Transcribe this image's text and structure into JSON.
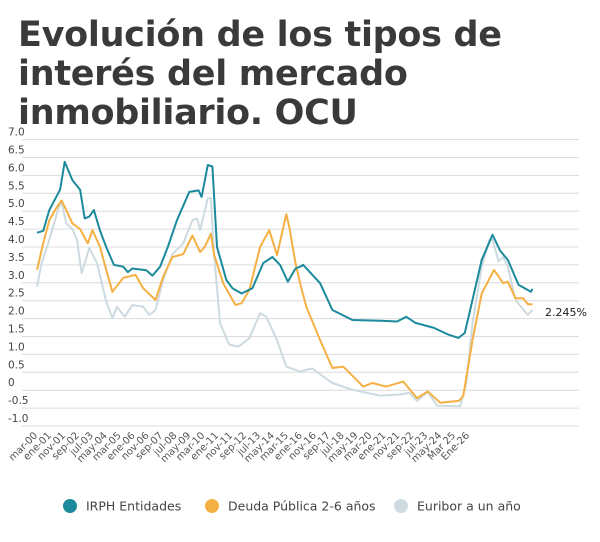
{
  "chart_data": {
    "type": "line",
    "title": "Evolución de los tipos de interés del mercado inmobiliario. OCU",
    "xlabel": "",
    "ylabel": "",
    "ylim": [
      -1.0,
      7.0
    ],
    "yticks": [
      "7.0",
      "6.5",
      "6.0",
      "5.5",
      "5.0",
      "4.5",
      "4.0",
      "3.5",
      "3.0",
      "2.5",
      "2.0",
      "1.5",
      "1.0",
      "0.5",
      "0",
      "-0.5",
      "-1.0"
    ],
    "xlim": [
      "1999-03",
      "2026-02"
    ],
    "xtick_labels": [
      "mar-00",
      "ene-01",
      "nov-01",
      "sep-02",
      "jul-03",
      "may-04",
      "mar-05",
      "ene-06",
      "nov-06",
      "sep-07",
      "jul-08",
      "may-09",
      "mar-10",
      "ene-11",
      "nov-11",
      "sep-12",
      "jul-13",
      "may-14",
      "mar-15",
      "ene-16",
      "nov-16",
      "sep-17",
      "jul-18",
      "may-19",
      "mar-20",
      "ene-21",
      "nov-21",
      "sep-22",
      "jul-23",
      "may-24",
      "Mar 25",
      "Ene-26"
    ],
    "grid": true,
    "legend_position": "bottom",
    "annotation": "2.245%",
    "series": [
      {
        "name": "IRPH Entidades",
        "color": "#1b8a9c",
        "points": [
          [
            "1999-03",
            4.4
          ],
          [
            "1999-07",
            4.45
          ],
          [
            "1999-11",
            5.03
          ],
          [
            "2000-06",
            5.6
          ],
          [
            "2000-09",
            6.38
          ],
          [
            "2001-02",
            5.87
          ],
          [
            "2001-07",
            5.6
          ],
          [
            "2001-10",
            4.8
          ],
          [
            "2002-01",
            4.85
          ],
          [
            "2002-04",
            5.03
          ],
          [
            "2002-08",
            4.45
          ],
          [
            "2002-12",
            4.0
          ],
          [
            "2003-05",
            3.5
          ],
          [
            "2003-11",
            3.45
          ],
          [
            "2004-02",
            3.3
          ],
          [
            "2004-05",
            3.4
          ],
          [
            "2005-02",
            3.35
          ],
          [
            "2005-06",
            3.2
          ],
          [
            "2005-11",
            3.45
          ],
          [
            "2006-04",
            4.0
          ],
          [
            "2006-10",
            4.75
          ],
          [
            "2007-06",
            5.54
          ],
          [
            "2007-12",
            5.58
          ],
          [
            "2008-02",
            5.4
          ],
          [
            "2008-06",
            6.29
          ],
          [
            "2008-09",
            6.25
          ],
          [
            "2008-12",
            4.0
          ],
          [
            "2009-06",
            3.08
          ],
          [
            "2009-10",
            2.85
          ],
          [
            "2010-04",
            2.7
          ],
          [
            "2010-11",
            2.85
          ],
          [
            "2011-06",
            3.55
          ],
          [
            "2011-12",
            3.72
          ],
          [
            "2012-05",
            3.5
          ],
          [
            "2012-10",
            3.03
          ],
          [
            "2013-03",
            3.4
          ],
          [
            "2013-06",
            3.45
          ],
          [
            "2013-08",
            3.5
          ],
          [
            "2014-07",
            2.99
          ],
          [
            "2015-03",
            2.24
          ],
          [
            "2016-04",
            1.96
          ],
          [
            "2017-10",
            1.94
          ],
          [
            "2018-09",
            1.92
          ],
          [
            "2019-03",
            2.05
          ],
          [
            "2019-09",
            1.88
          ],
          [
            "2020-09",
            1.74
          ],
          [
            "2021-06",
            1.56
          ],
          [
            "2022-01",
            1.46
          ],
          [
            "2022-05",
            1.6
          ],
          [
            "2022-09",
            2.33
          ],
          [
            "2023-04",
            3.64
          ],
          [
            "2023-11",
            4.34
          ],
          [
            "2024-04",
            3.9
          ],
          [
            "2024-09",
            3.64
          ],
          [
            "2025-04",
            2.94
          ],
          [
            "2025-12",
            2.75
          ],
          [
            "2026-01",
            2.83
          ]
        ]
      },
      {
        "name": "Deuda Pública 2-6 años",
        "color": "#f5b043",
        "points": [
          [
            "1999-03",
            3.36
          ],
          [
            "1999-07",
            4.1
          ],
          [
            "1999-11",
            4.75
          ],
          [
            "2000-04",
            5.12
          ],
          [
            "2000-07",
            5.3
          ],
          [
            "2000-10",
            5.03
          ],
          [
            "2001-02",
            4.66
          ],
          [
            "2001-07",
            4.5
          ],
          [
            "2001-12",
            4.1
          ],
          [
            "2002-03",
            4.47
          ],
          [
            "2002-08",
            4.0
          ],
          [
            "2002-12",
            3.36
          ],
          [
            "2003-04",
            2.75
          ],
          [
            "2003-11",
            3.14
          ],
          [
            "2004-07",
            3.22
          ],
          [
            "2004-12",
            2.85
          ],
          [
            "2005-08",
            2.52
          ],
          [
            "2006-01",
            3.17
          ],
          [
            "2006-07",
            3.72
          ],
          [
            "2007-02",
            3.8
          ],
          [
            "2007-08",
            4.32
          ],
          [
            "2008-01",
            3.86
          ],
          [
            "2008-04",
            4.0
          ],
          [
            "2008-08",
            4.37
          ],
          [
            "2008-10",
            3.8
          ],
          [
            "2009-04",
            2.99
          ],
          [
            "2009-12",
            2.38
          ],
          [
            "2010-04",
            2.43
          ],
          [
            "2010-09",
            2.8
          ],
          [
            "2011-04",
            4.0
          ],
          [
            "2011-10",
            4.47
          ],
          [
            "2012-03",
            3.77
          ],
          [
            "2012-09",
            4.92
          ],
          [
            "2012-11",
            4.56
          ],
          [
            "2013-03",
            3.55
          ],
          [
            "2013-06",
            2.99
          ],
          [
            "2013-10",
            2.33
          ],
          [
            "2014-07",
            1.4
          ],
          [
            "2015-03",
            0.62
          ],
          [
            "2015-10",
            0.66
          ],
          [
            "2016-11",
            0.1
          ],
          [
            "2017-05",
            0.2
          ],
          [
            "2018-02",
            0.1
          ],
          [
            "2019-01",
            0.24
          ],
          [
            "2019-10",
            -0.22
          ],
          [
            "2020-05",
            -0.03
          ],
          [
            "2021-01",
            -0.35
          ],
          [
            "2022-01",
            -0.3
          ],
          [
            "2022-04",
            -0.17
          ],
          [
            "2022-10",
            1.4
          ],
          [
            "2023-04",
            2.7
          ],
          [
            "2023-12",
            3.36
          ],
          [
            "2024-06",
            2.99
          ],
          [
            "2024-09",
            3.03
          ],
          [
            "2025-02",
            2.57
          ],
          [
            "2025-07",
            2.57
          ],
          [
            "2025-10",
            2.4
          ],
          [
            "2026-01",
            2.4
          ]
        ]
      },
      {
        "name": "Euribor a un año",
        "color": "#cddbe1",
        "points": [
          [
            "1999-03",
            2.89
          ],
          [
            "1999-06",
            3.55
          ],
          [
            "1999-11",
            4.2
          ],
          [
            "2000-05",
            5.08
          ],
          [
            "2000-07",
            5.26
          ],
          [
            "2000-10",
            4.66
          ],
          [
            "2001-02",
            4.5
          ],
          [
            "2001-05",
            4.2
          ],
          [
            "2001-08",
            3.27
          ],
          [
            "2002-01",
            3.97
          ],
          [
            "2002-06",
            3.55
          ],
          [
            "2002-12",
            2.48
          ],
          [
            "2003-04",
            2.01
          ],
          [
            "2003-07",
            2.33
          ],
          [
            "2003-12",
            2.05
          ],
          [
            "2004-05",
            2.38
          ],
          [
            "2004-12",
            2.33
          ],
          [
            "2005-04",
            2.1
          ],
          [
            "2005-08",
            2.24
          ],
          [
            "2006-01",
            3.08
          ],
          [
            "2006-07",
            3.8
          ],
          [
            "2007-02",
            4.1
          ],
          [
            "2007-08",
            4.75
          ],
          [
            "2007-11",
            4.8
          ],
          [
            "2008-01",
            4.47
          ],
          [
            "2008-06",
            5.36
          ],
          [
            "2008-08",
            5.36
          ],
          [
            "2008-10",
            3.8
          ],
          [
            "2009-02",
            1.87
          ],
          [
            "2009-08",
            1.27
          ],
          [
            "2010-02",
            1.22
          ],
          [
            "2010-09",
            1.45
          ],
          [
            "2011-04",
            2.15
          ],
          [
            "2011-08",
            2.05
          ],
          [
            "2012-03",
            1.4
          ],
          [
            "2012-09",
            0.66
          ],
          [
            "2013-06",
            0.52
          ],
          [
            "2014-02",
            0.61
          ],
          [
            "2014-09",
            0.38
          ],
          [
            "2015-03",
            0.2
          ],
          [
            "2016-04",
            0.01
          ],
          [
            "2017-10",
            -0.15
          ],
          [
            "2018-11",
            -0.12
          ],
          [
            "2019-05",
            -0.07
          ],
          [
            "2019-10",
            -0.3
          ],
          [
            "2020-05",
            -0.05
          ],
          [
            "2020-11",
            -0.43
          ],
          [
            "2022-02",
            -0.45
          ],
          [
            "2022-06",
            0.2
          ],
          [
            "2022-10",
            1.87
          ],
          [
            "2023-04",
            3.45
          ],
          [
            "2023-09",
            4.2
          ],
          [
            "2023-11",
            4.2
          ],
          [
            "2024-03",
            3.6
          ],
          [
            "2024-06",
            3.72
          ],
          [
            "2024-09",
            3.45
          ],
          [
            "2025-02",
            2.52
          ],
          [
            "2025-10",
            2.1
          ],
          [
            "2026-01",
            2.245
          ]
        ]
      }
    ]
  }
}
